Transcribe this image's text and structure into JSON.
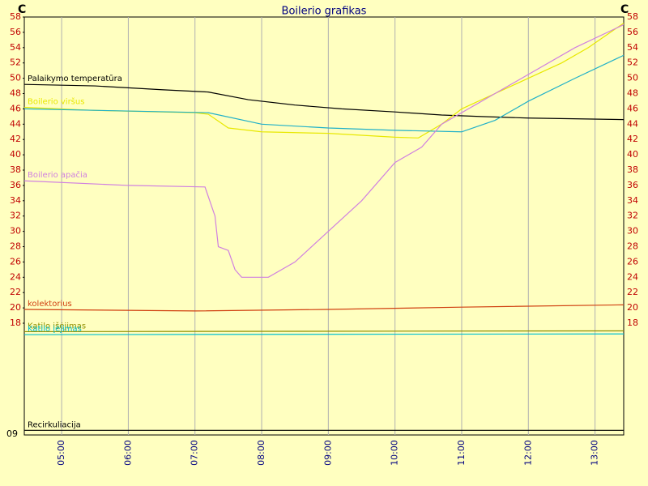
{
  "chart_data": {
    "type": "line",
    "title": "Boilerio grafikas",
    "y_unit_left": "C",
    "y_unit_right": "C",
    "corner_label": "09",
    "xlim": [
      4.44,
      13.43
    ],
    "ylim": [
      3.4,
      58
    ],
    "xticks": [
      {
        "value": 5,
        "label": "05:00"
      },
      {
        "value": 6,
        "label": "06:00"
      },
      {
        "value": 7,
        "label": "07:00"
      },
      {
        "value": 8,
        "label": "08:00"
      },
      {
        "value": 9,
        "label": "09:00"
      },
      {
        "value": 10,
        "label": "10:00"
      },
      {
        "value": 11,
        "label": "11:00"
      },
      {
        "value": 12,
        "label": "12:00"
      },
      {
        "value": 13,
        "label": "13:00"
      }
    ],
    "yticks": [
      18,
      20,
      22,
      24,
      26,
      28,
      30,
      32,
      34,
      36,
      38,
      40,
      42,
      44,
      46,
      48,
      50,
      52,
      54,
      56,
      58
    ],
    "grid": true,
    "series": [
      {
        "name": "Palaikymo temperatūra",
        "color": "#000000",
        "x": [
          4.44,
          5.5,
          6.5,
          7.2,
          7.8,
          8.5,
          9.2,
          10,
          10.7,
          11.3,
          12,
          13.43
        ],
        "values": [
          49.2,
          49,
          48.5,
          48.2,
          47.2,
          46.5,
          46,
          45.6,
          45.2,
          45,
          44.8,
          44.6
        ]
      },
      {
        "name": "Boilerio viršus",
        "color": "#e8e800",
        "x": [
          4.44,
          5.5,
          7,
          7.2,
          7.5,
          8,
          9,
          10,
          10.35,
          10.7,
          11,
          11.5,
          12,
          12.5,
          12.9,
          13.43
        ],
        "values": [
          46.2,
          45.8,
          45.5,
          45.3,
          43.5,
          43,
          42.8,
          42.3,
          42.2,
          44,
          46,
          48,
          50,
          52,
          54,
          57.2
        ]
      },
      {
        "color": "#20b0c8",
        "x": [
          4.44,
          7.2,
          8,
          9,
          10,
          11,
          11.5,
          12,
          12.7,
          13.43
        ],
        "values": [
          46,
          45.5,
          44,
          43.5,
          43.2,
          43,
          44.5,
          47,
          50,
          53
        ]
      },
      {
        "name": "Boilerio apačia",
        "color": "#d080e0",
        "x": [
          4.44,
          6,
          7.15,
          7.3,
          7.35,
          7.5,
          7.6,
          7.7,
          8.1,
          8.5,
          9,
          9.5,
          10,
          10.4,
          10.7,
          11.1,
          11.9,
          12.7,
          13.43
        ],
        "values": [
          36.6,
          36,
          35.8,
          32,
          28,
          27.5,
          25,
          24,
          24,
          26,
          30,
          34,
          39,
          41,
          44,
          46,
          50,
          54,
          57
        ]
      },
      {
        "name": "kolektorius",
        "color": "#d04010",
        "x": [
          4.44,
          7,
          9,
          11,
          13.43
        ],
        "values": [
          19.8,
          19.6,
          19.8,
          20.1,
          20.4
        ]
      },
      {
        "name": "Katilo išėjimas",
        "color": "#909000",
        "x": [
          4.44,
          13.43
        ],
        "values": [
          16.9,
          17
        ]
      },
      {
        "name": "Katilo įėjimas",
        "color": "#00c0d0",
        "x": [
          4.44,
          13.43
        ],
        "values": [
          16.5,
          16.6
        ]
      },
      {
        "name": "Recirkuliacija",
        "color": "#000000",
        "x": [
          4.44,
          13.43
        ],
        "values": [
          4,
          4
        ]
      }
    ]
  }
}
